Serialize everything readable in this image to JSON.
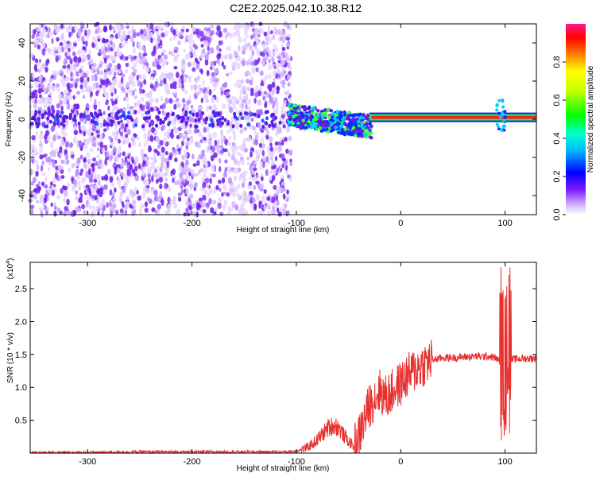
{
  "title": "C2E2.2025.042.10.38.R12",
  "chart_data": [
    {
      "type": "heatmap",
      "xlabel": "Height of straight line (km)",
      "ylabel": "Frequency (Hz)",
      "xlim": [
        -355,
        130
      ],
      "ylim": [
        -50,
        50
      ],
      "xticks": [
        -300,
        -200,
        -100,
        0,
        100
      ],
      "yticks": [
        -40,
        -20,
        0,
        20,
        40
      ],
      "colorbar": {
        "label": "Normalized spectral amplitude",
        "range": [
          0,
          1
        ],
        "ticks": [
          0,
          0.2,
          0.4,
          0.6,
          0.8
        ],
        "tick_labels": [
          "0.0",
          "0.2",
          "0.4",
          "0.6",
          "0.8"
        ],
        "colors": [
          "#ffffff",
          "#9b30ff",
          "#0000ff",
          "#00ffff",
          "#00ff00",
          "#ffff00",
          "#ff0000",
          "#ff00ff"
        ]
      },
      "description_regions": {
        "noise_extent_x": [
          -355,
          -105
        ],
        "strong_line_start_x": -30,
        "strong_line_freq": 1
      }
    },
    {
      "type": "line",
      "xlabel": "Height of straight line (km)",
      "ylabel": "SNR (10 * v/v)",
      "y_scale_note": "(x10",
      "y_scale_exp": "4",
      "y_scale_close": ")",
      "xlim": [
        -355,
        130
      ],
      "ylim": [
        0,
        2.9
      ],
      "xticks": [
        -300,
        -200,
        -100,
        0,
        100
      ],
      "yticks": [
        0.5,
        1.0,
        1.5,
        2.0,
        2.5
      ],
      "ytick_labels": [
        "0.5",
        "1.0",
        "1.5",
        "2.0",
        "2.5"
      ],
      "series": [
        {
          "color": "#e8302f",
          "x": [
            -355,
            -300,
            -250,
            -200,
            -150,
            -110,
            -100,
            -90,
            -80,
            -70,
            -65,
            -60,
            -55,
            -50,
            -45,
            -40,
            -35,
            -30,
            -25,
            -20,
            -15,
            -10,
            -5,
            0,
            5,
            10,
            15,
            20,
            25,
            30,
            35,
            40,
            50,
            60,
            70,
            80,
            85,
            90,
            95,
            100,
            102,
            105,
            110,
            120,
            130
          ],
          "y": [
            0.01,
            0.01,
            0.02,
            0.02,
            0.02,
            0.02,
            0.03,
            0.08,
            0.2,
            0.38,
            0.42,
            0.4,
            0.28,
            0.18,
            0.1,
            0.25,
            0.5,
            0.72,
            0.85,
            0.95,
            0.85,
            0.9,
            1.0,
            1.05,
            1.15,
            1.22,
            1.28,
            1.33,
            1.38,
            1.42,
            1.43,
            1.45,
            1.45,
            1.46,
            1.47,
            1.47,
            1.47,
            1.45,
            1.4,
            1.3,
            1.5,
            1.42,
            1.43,
            1.44,
            1.44
          ]
        }
      ]
    }
  ]
}
